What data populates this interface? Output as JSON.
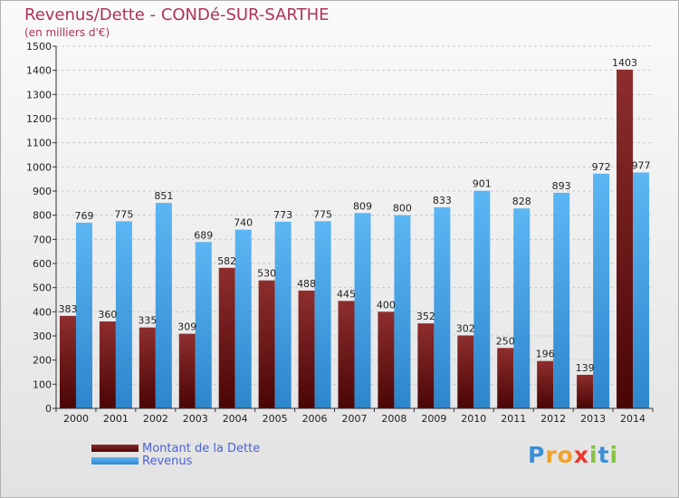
{
  "chart_data": {
    "type": "bar",
    "title": "Revenus/Dette - CONDé-SUR-SARTHE",
    "subtitle": "(en milliers d'€)",
    "xlabel": "",
    "ylabel": "",
    "ylim": [
      0,
      1500
    ],
    "yticks": [
      0,
      100,
      200,
      300,
      400,
      500,
      600,
      700,
      800,
      900,
      1000,
      1100,
      1200,
      1300,
      1400,
      1500
    ],
    "categories": [
      "2000",
      "2001",
      "2002",
      "2003",
      "2004",
      "2005",
      "2006",
      "2007",
      "2008",
      "2009",
      "2010",
      "2011",
      "2012",
      "2013",
      "2014"
    ],
    "series": [
      {
        "name": "Montant de la Dette",
        "color": "#7a1a1a",
        "values": [
          383,
          360,
          335,
          309,
          582,
          530,
          488,
          445,
          400,
          352,
          302,
          250,
          196,
          139,
          1403
        ]
      },
      {
        "name": "Revenus",
        "color": "#4aa3e8",
        "values": [
          769,
          775,
          851,
          689,
          740,
          773,
          775,
          809,
          800,
          833,
          901,
          828,
          893,
          972,
          977
        ]
      }
    ],
    "grid": true,
    "legend": "bottom-left"
  },
  "logo": {
    "text": "Proxiti",
    "letters": [
      "P",
      "r",
      "o",
      "x",
      "i",
      "t",
      "i"
    ]
  }
}
